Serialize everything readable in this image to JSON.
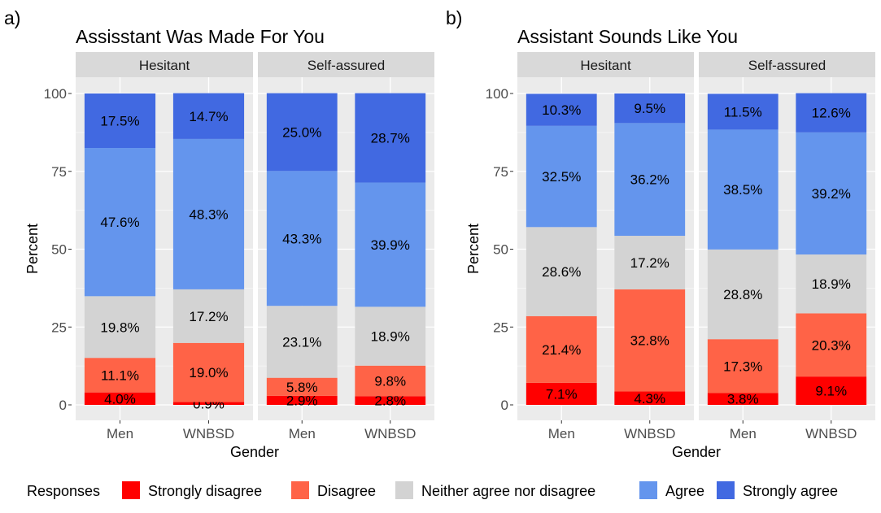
{
  "panel_labels": [
    "a)",
    "b)"
  ],
  "legend": {
    "title": "Responses",
    "items": [
      {
        "label": "Strongly disagree",
        "color": "#FF0000"
      },
      {
        "label": "Disagree",
        "color": "#FF6347"
      },
      {
        "label": "Neither agree nor disagree",
        "color": "#D3D3D3"
      },
      {
        "label": "Agree",
        "color": "#6495ED"
      },
      {
        "label": "Strongly agree",
        "color": "#4169E1"
      }
    ]
  },
  "chart_data": [
    {
      "type": "bar",
      "stacked": true,
      "title": "Assisstant Was Made For You",
      "xlabel": "Gender",
      "ylabel": "Percent",
      "ylim": [
        0,
        100
      ],
      "yticks": [
        0,
        25,
        50,
        75,
        100
      ],
      "categories": [
        "Men",
        "WNBSD"
      ],
      "facets": [
        {
          "name": "Hesitant",
          "series": [
            {
              "name": "Strongly disagree",
              "values": [
                4.0,
                0.9
              ],
              "labels": [
                "4.0%",
                "0.9%"
              ]
            },
            {
              "name": "Disagree",
              "values": [
                11.1,
                19.0
              ],
              "labels": [
                "11.1%",
                "19.0%"
              ]
            },
            {
              "name": "Neither agree nor disagree",
              "values": [
                19.8,
                17.2
              ],
              "labels": [
                "19.8%",
                "17.2%"
              ]
            },
            {
              "name": "Agree",
              "values": [
                47.6,
                48.3
              ],
              "labels": [
                "47.6%",
                "48.3%"
              ]
            },
            {
              "name": "Strongly agree",
              "values": [
                17.5,
                14.7
              ],
              "labels": [
                "17.5%",
                "14.7%"
              ]
            }
          ]
        },
        {
          "name": "Self-assured",
          "series": [
            {
              "name": "Strongly disagree",
              "values": [
                2.9,
                2.8
              ],
              "labels": [
                "2.9%",
                "2.8%"
              ]
            },
            {
              "name": "Disagree",
              "values": [
                5.8,
                9.8
              ],
              "labels": [
                "5.8%",
                "9.8%"
              ]
            },
            {
              "name": "Neither agree nor disagree",
              "values": [
                23.1,
                18.9
              ],
              "labels": [
                "23.1%",
                "18.9%"
              ]
            },
            {
              "name": "Agree",
              "values": [
                43.3,
                39.9
              ],
              "labels": [
                "43.3%",
                "39.9%"
              ]
            },
            {
              "name": "Strongly agree",
              "values": [
                25.0,
                28.7
              ],
              "labels": [
                "25.0%",
                "28.7%"
              ]
            }
          ]
        }
      ]
    },
    {
      "type": "bar",
      "stacked": true,
      "title": "Assistant Sounds Like You",
      "xlabel": "Gender",
      "ylabel": "Percent",
      "ylim": [
        0,
        100
      ],
      "yticks": [
        0,
        25,
        50,
        75,
        100
      ],
      "categories": [
        "Men",
        "WNBSD"
      ],
      "facets": [
        {
          "name": "Hesitant",
          "series": [
            {
              "name": "Strongly disagree",
              "values": [
                7.1,
                4.3
              ],
              "labels": [
                "7.1%",
                "4.3%"
              ]
            },
            {
              "name": "Disagree",
              "values": [
                21.4,
                32.8
              ],
              "labels": [
                "21.4%",
                "32.8%"
              ]
            },
            {
              "name": "Neither agree nor disagree",
              "values": [
                28.6,
                17.2
              ],
              "labels": [
                "28.6%",
                "17.2%"
              ]
            },
            {
              "name": "Agree",
              "values": [
                32.5,
                36.2
              ],
              "labels": [
                "32.5%",
                "36.2%"
              ]
            },
            {
              "name": "Strongly agree",
              "values": [
                10.3,
                9.5
              ],
              "labels": [
                "10.3%",
                "9.5%"
              ]
            }
          ]
        },
        {
          "name": "Self-assured",
          "series": [
            {
              "name": "Strongly disagree",
              "values": [
                3.8,
                9.1
              ],
              "labels": [
                "3.8%",
                "9.1%"
              ]
            },
            {
              "name": "Disagree",
              "values": [
                17.3,
                20.3
              ],
              "labels": [
                "17.3%",
                "20.3%"
              ]
            },
            {
              "name": "Neither agree nor disagree",
              "values": [
                28.8,
                18.9
              ],
              "labels": [
                "28.8%",
                "18.9%"
              ]
            },
            {
              "name": "Agree",
              "values": [
                38.5,
                39.2
              ],
              "labels": [
                "38.5%",
                "39.2%"
              ]
            },
            {
              "name": "Strongly agree",
              "values": [
                11.5,
                12.6
              ],
              "labels": [
                "11.5%",
                "12.6%"
              ]
            }
          ]
        }
      ]
    }
  ]
}
